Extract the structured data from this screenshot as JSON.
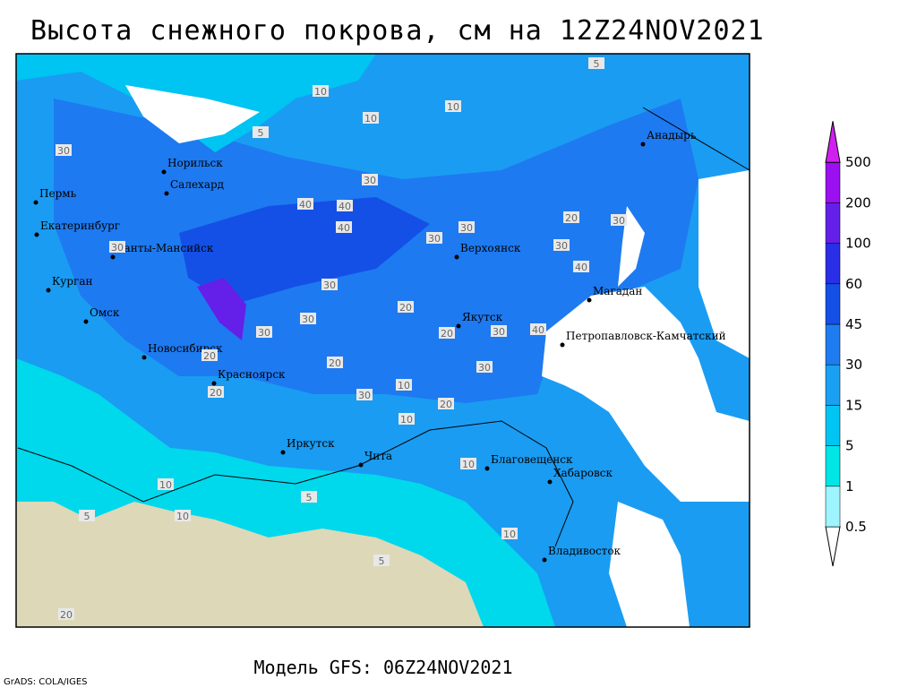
{
  "title": "Высота снежного покрова, см на 12Z24NOV2021",
  "footer": "Модель GFS: 06Z24NOV2021",
  "credit": "GrADS: COLA/IGES",
  "legend": {
    "levels": [
      0.5,
      1,
      5,
      15,
      30,
      45,
      60,
      100,
      200,
      500
    ],
    "colors": [
      "#ffffff",
      "#9ef4ff",
      "#00e6e6",
      "#00c4f2",
      "#1aa0f2",
      "#1e7cf0",
      "#1450e6",
      "#2a2ee6",
      "#6420e8",
      "#9a10f0",
      "#d020f0"
    ]
  },
  "cities": [
    "Норильск",
    "Салехард",
    "Пермь",
    "Екатеринбург",
    "Ханты-Мансийск",
    "Курган",
    "Омск",
    "Новосибирск",
    "Красноярск",
    "Иркутск",
    "Чита",
    "Верхоянск",
    "Якутск",
    "Магадан",
    "Петропавловск-Камчатский",
    "Анадырь",
    "Благовещенск",
    "Хабаровск",
    "Владивосток"
  ],
  "contour_labels": [
    10,
    10,
    5,
    10,
    5,
    30,
    30,
    40,
    40,
    40,
    30,
    30,
    30,
    30,
    30,
    40,
    30,
    30,
    20,
    20,
    30,
    30,
    20,
    10,
    10,
    10,
    5,
    5,
    10,
    20,
    20,
    20,
    10,
    5,
    10,
    20,
    30,
    30,
    20,
    40
  ]
}
